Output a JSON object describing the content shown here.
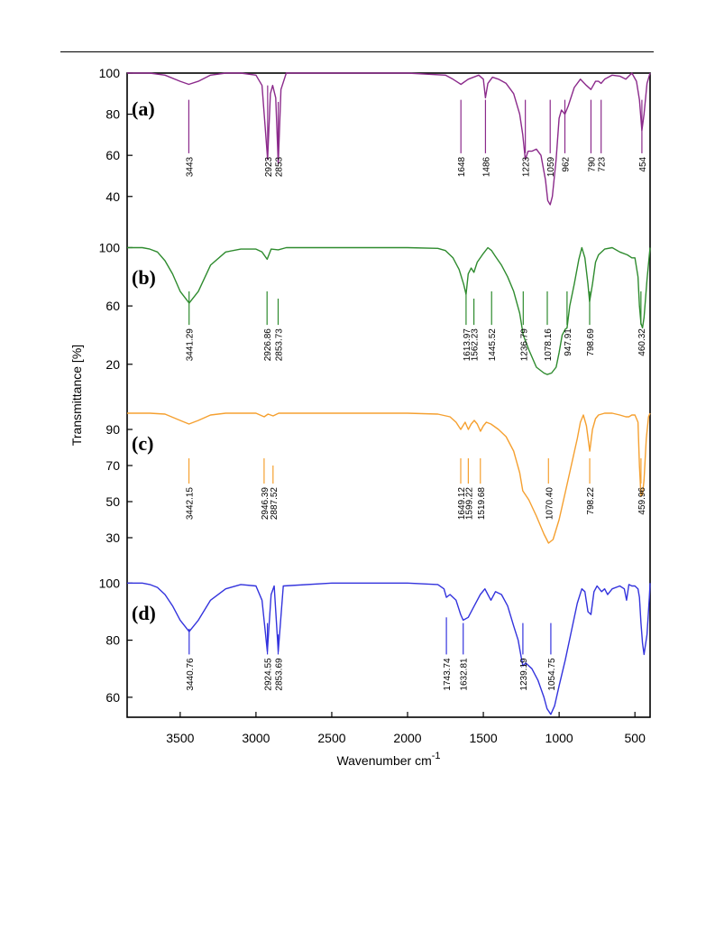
{
  "chart_data": {
    "type": "line",
    "xlabel": "Wavenumber cm",
    "xlabel_superscript": "-1",
    "ylabel": "Transmittance [%]",
    "xlim": [
      3850,
      400
    ],
    "x_reversed": true,
    "x_ticks": [
      3500,
      3000,
      2500,
      2000,
      1500,
      1000,
      500
    ],
    "x_tick_labels": [
      "3500",
      "3000",
      "2500",
      "2000",
      "1500",
      "1000",
      "500"
    ],
    "grid": false,
    "legend": "none",
    "panels": [
      {
        "letter": "(a)",
        "color": "#8b2a8b",
        "ylim": [
          32,
          100
        ],
        "y_ticks": [
          40,
          60,
          80,
          100
        ],
        "y_tick_labels": [
          "40",
          "60",
          "80",
          "100"
        ],
        "peak_labels": [
          "3443",
          "2923",
          "2853",
          "1648",
          "1486",
          "1223",
          "1059",
          "962",
          "790",
          "723",
          "454"
        ],
        "peaks": [
          {
            "label": "3443",
            "x": 3443,
            "y_top": 61,
            "y_bottom": 87
          },
          {
            "label": "2923",
            "x": 2923,
            "y_top": 61,
            "y_bottom": 94
          },
          {
            "label": "2853",
            "x": 2853,
            "y_top": 61,
            "y_bottom": 86
          },
          {
            "label": "1648",
            "x": 1648,
            "y_top": 61,
            "y_bottom": 87
          },
          {
            "label": "1486",
            "x": 1486,
            "y_top": 61,
            "y_bottom": 87
          },
          {
            "label": "1223",
            "x": 1223,
            "y_top": 61,
            "y_bottom": 87
          },
          {
            "label": "1059",
            "x": 1059,
            "y_top": 61,
            "y_bottom": 87
          },
          {
            "label": "962",
            "x": 962,
            "y_top": 61,
            "y_bottom": 87
          },
          {
            "label": "790",
            "x": 790,
            "y_top": 61,
            "y_bottom": 87
          },
          {
            "label": "723",
            "x": 723,
            "y_top": 61,
            "y_bottom": 87
          },
          {
            "label": "454",
            "x": 454,
            "y_top": 61,
            "y_bottom": 87
          }
        ],
        "series": [
          {
            "x": [
              3850,
              3700,
              3600,
              3500,
              3443,
              3380,
              3300,
              3200,
              3100,
              3000,
              2960,
              2923,
              2905,
              2890,
              2870,
              2853,
              2835,
              2800,
              2500,
              2000,
              1750,
              1700,
              1648,
              1600,
              1530,
              1500,
              1486,
              1470,
              1440,
              1400,
              1350,
              1300,
              1260,
              1240,
              1223,
              1205,
              1180,
              1150,
              1120,
              1090,
              1075,
              1059,
              1045,
              1020,
              1000,
              985,
              962,
              940,
              900,
              860,
              820,
              790,
              760,
              740,
              723,
              700,
              650,
              600,
              560,
              520,
              490,
              470,
              454,
              440,
              420,
              400
            ],
            "y": [
              100,
              100,
              99,
              96,
              94.5,
              96,
              99,
              100,
              100,
              99,
              94,
              58,
              90,
              94,
              88,
              56,
              92,
              100,
              100,
              100,
              99,
              97,
              94.5,
              97,
              99,
              97,
              88,
              95,
              98,
              97,
              95,
              90,
              80,
              70,
              58,
              62,
              62,
              63,
              60,
              48,
              38,
              36,
              40,
              58,
              78,
              82,
              80,
              84,
              93,
              97,
              94,
              92,
              96,
              96,
              95,
              97,
              99,
              98.5,
              97,
              100,
              96,
              87,
              72,
              80,
              95,
              100
            ]
          }
        ]
      },
      {
        "letter": "(b)",
        "color": "#2e8b2e",
        "ylim": [
          5,
          104
        ],
        "y_ticks": [
          20,
          60,
          100
        ],
        "y_tick_labels": [
          "20",
          "60",
          "100"
        ],
        "peak_labels": [
          "3441.29",
          "2926.86",
          "2853.73",
          "1613.97",
          "1562.23",
          "1445.52",
          "1236.79",
          "1078.16",
          "947.91",
          "798.69",
          "460.32"
        ],
        "peaks": [
          {
            "label": "3441.29",
            "x": 3441.29,
            "y_top": 47,
            "y_bottom": 70
          },
          {
            "label": "2926.86",
            "x": 2926.86,
            "y_top": 47,
            "y_bottom": 70
          },
          {
            "label": "2853.73",
            "x": 2853.73,
            "y_top": 47,
            "y_bottom": 65
          },
          {
            "label": "1613.97",
            "x": 1613.97,
            "y_top": 47,
            "y_bottom": 70
          },
          {
            "label": "1562.23",
            "x": 1562.23,
            "y_top": 47,
            "y_bottom": 65
          },
          {
            "label": "1445.52",
            "x": 1445.52,
            "y_top": 47,
            "y_bottom": 70
          },
          {
            "label": "1236.79",
            "x": 1236.79,
            "y_top": 47,
            "y_bottom": 70
          },
          {
            "label": "1078.16",
            "x": 1078.16,
            "y_top": 47,
            "y_bottom": 70
          },
          {
            "label": "947.91",
            "x": 947.91,
            "y_top": 47,
            "y_bottom": 70
          },
          {
            "label": "798.69",
            "x": 798.69,
            "y_top": 47,
            "y_bottom": 70
          },
          {
            "label": "460.32",
            "x": 460.32,
            "y_top": 47,
            "y_bottom": 70
          }
        ],
        "series": [
          {
            "x": [
              3850,
              3750,
              3700,
              3650,
              3600,
              3550,
              3500,
              3441,
              3380,
              3300,
              3200,
              3100,
              3000,
              2960,
              2926,
              2900,
              2853,
              2800,
              2500,
              2000,
              1800,
              1750,
              1700,
              1660,
              1630,
              1614,
              1600,
              1580,
              1562,
              1540,
              1500,
              1470,
              1446,
              1420,
              1380,
              1340,
              1300,
              1260,
              1237,
              1200,
              1150,
              1100,
              1078,
              1050,
              1020,
              1000,
              980,
              960,
              948,
              930,
              900,
              870,
              850,
              830,
              810,
              799,
              780,
              760,
              740,
              700,
              650,
              600,
              550,
              520,
              500,
              480,
              470,
              460,
              450,
              440,
              420,
              405,
              400
            ],
            "y": [
              100,
              100,
              99,
              97,
              91,
              82,
              70,
              62,
              70,
              88,
              97,
              99,
              99,
              97,
              92,
              99,
              98.5,
              100,
              100,
              100,
              99.5,
              98,
              93,
              85,
              75,
              68,
              82,
              86,
              83,
              90,
              96,
              100,
              98,
              94,
              88,
              80,
              70,
              55,
              40,
              30,
              18,
              14,
              13,
              14,
              18,
              28,
              40,
              44,
              45,
              60,
              75,
              92,
              100,
              93,
              75,
              63,
              75,
              90,
              95,
              99,
              100,
              97,
              95,
              93,
              93,
              80,
              60,
              48,
              45,
              52,
              78,
              95,
              100
            ]
          }
        ]
      },
      {
        "letter": "(c)",
        "color": "#f5a030",
        "ylim": [
          24,
          102
        ],
        "y_ticks": [
          30,
          50,
          70,
          90
        ],
        "y_tick_labels": [
          "30",
          "50",
          "70",
          "90"
        ],
        "peak_labels": [
          "3442.15",
          "2946.39",
          "2887.52",
          "1649.12",
          "1599.22",
          "1519.68",
          "1070.40",
          "798.22",
          "459.96"
        ],
        "peaks": [
          {
            "label": "3442.15",
            "x": 3442.15,
            "y_top": 60,
            "y_bottom": 74
          },
          {
            "label": "2946.39",
            "x": 2946.39,
            "y_top": 60,
            "y_bottom": 74
          },
          {
            "label": "2887.52",
            "x": 2887.52,
            "y_top": 60,
            "y_bottom": 70
          },
          {
            "label": "1649.12",
            "x": 1649.12,
            "y_top": 60,
            "y_bottom": 74
          },
          {
            "label": "1599.22",
            "x": 1599.22,
            "y_top": 60,
            "y_bottom": 74
          },
          {
            "label": "1519.68",
            "x": 1519.68,
            "y_top": 60,
            "y_bottom": 74
          },
          {
            "label": "1070.40",
            "x": 1070.4,
            "y_top": 60,
            "y_bottom": 74
          },
          {
            "label": "798.22",
            "x": 798.22,
            "y_top": 60,
            "y_bottom": 74
          },
          {
            "label": "459.96",
            "x": 459.96,
            "y_top": 60,
            "y_bottom": 74
          }
        ],
        "series": [
          {
            "x": [
              3850,
              3700,
              3600,
              3500,
              3442,
              3380,
              3300,
              3200,
              3000,
              2946,
              2920,
              2887,
              2850,
              2500,
              2000,
              1800,
              1720,
              1680,
              1649,
              1620,
              1599,
              1580,
              1560,
              1540,
              1519,
              1500,
              1480,
              1450,
              1400,
              1350,
              1300,
              1260,
              1240,
              1200,
              1150,
              1100,
              1070,
              1040,
              1000,
              960,
              920,
              880,
              860,
              840,
              820,
              798,
              780,
              760,
              740,
              700,
              650,
              600,
              560,
              540,
              520,
              500,
              480,
              470,
              460,
              450,
              440,
              425,
              410,
              400
            ],
            "y": [
              99,
              99,
              98.5,
              95,
              93,
              95,
              98,
              99,
              99,
              97,
              98.5,
              97.5,
              99,
              99,
              99,
              98.5,
              97,
              94,
              90,
              94,
              90,
              93,
              95,
              93,
              89,
              92,
              94,
              93,
              90,
              86,
              78,
              66,
              56,
              51,
              42,
              32,
              27,
              29,
              40,
              55,
              70,
              85,
              94,
              98,
              92,
              78,
              90,
              96,
              98,
              99,
              99,
              98,
              97,
              97,
              98,
              98,
              94,
              70,
              53,
              54,
              62,
              85,
              97,
              99
            ]
          }
        ]
      },
      {
        "letter": "(d)",
        "color": "#3333dd",
        "ylim": [
          53,
          102
        ],
        "y_ticks": [
          60,
          80,
          100
        ],
        "y_tick_labels": [
          "60",
          "80",
          "100"
        ],
        "peak_labels": [
          "3440.76",
          "2924.55",
          "2853.69",
          "1743.74",
          "1632.81",
          "1239.19",
          "1054.75"
        ],
        "peaks": [
          {
            "label": "3440.76",
            "x": 3440.76,
            "y_top": 75,
            "y_bottom": 84
          },
          {
            "label": "2924.55",
            "x": 2924.55,
            "y_top": 75,
            "y_bottom": 86
          },
          {
            "label": "2853.69",
            "x": 2853.69,
            "y_top": 75,
            "y_bottom": 82
          },
          {
            "label": "1743.74",
            "x": 1743.74,
            "y_top": 75,
            "y_bottom": 88
          },
          {
            "label": "1632.81",
            "x": 1632.81,
            "y_top": 75,
            "y_bottom": 86
          },
          {
            "label": "1239.19",
            "x": 1239.19,
            "y_top": 75,
            "y_bottom": 86
          },
          {
            "label": "1054.75",
            "x": 1054.75,
            "y_top": 75,
            "y_bottom": 86
          }
        ],
        "series": [
          {
            "x": [
              3850,
              3750,
              3700,
              3650,
              3600,
              3550,
              3500,
              3441,
              3380,
              3300,
              3200,
              3100,
              3000,
              2960,
              2925,
              2900,
              2880,
              2853,
              2820,
              2500,
              2000,
              1800,
              1760,
              1744,
              1720,
              1680,
              1650,
              1633,
              1600,
              1560,
              1520,
              1490,
              1470,
              1450,
              1420,
              1380,
              1340,
              1300,
              1270,
              1250,
              1239,
              1220,
              1180,
              1140,
              1100,
              1080,
              1055,
              1030,
              1000,
              960,
              920,
              880,
              850,
              830,
              810,
              790,
              770,
              750,
              720,
              700,
              680,
              650,
              600,
              570,
              555,
              540,
              520,
              500,
              480,
              470,
              460,
              450,
              440,
              420,
              405,
              400
            ],
            "y": [
              100,
              100,
              99.5,
              98.5,
              96,
              92,
              87,
              83,
              87,
              94,
              98,
              99.5,
              99,
              94,
              76,
              96,
              99,
              76,
              99,
              100,
              100,
              99.5,
              98,
              95,
              96,
              94,
              89,
              87,
              88,
              92,
              96,
              98,
              96,
              94,
              97,
              96,
              92,
              85,
              80,
              74,
              71,
              72,
              70,
              66,
              60,
              56,
              54,
              57,
              64,
              73,
              83,
              93,
              98,
              97,
              90,
              89,
              97,
              99,
              97,
              98,
              96,
              98,
              99,
              98,
              94,
              99.5,
              99,
              99,
              98,
              95,
              86,
              79,
              75,
              82,
              95,
              100
            ]
          }
        ]
      }
    ]
  }
}
